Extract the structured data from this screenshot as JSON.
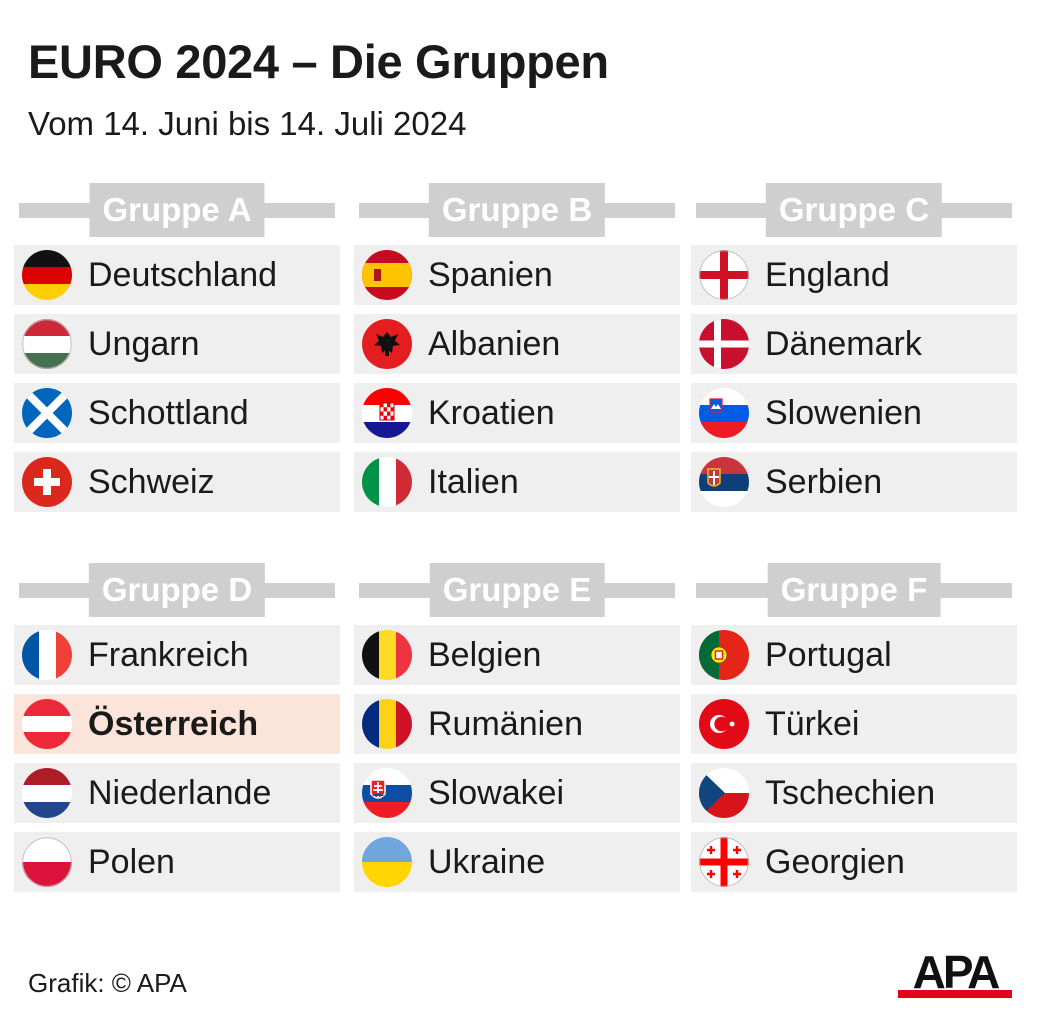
{
  "title": "EURO 2024 – Die Gruppen",
  "subtitle": "Vom 14. Juni bis 14. Juli 2024",
  "groups": [
    {
      "label": "Gruppe A",
      "teams": [
        {
          "name": "Deutschland",
          "flag": "germany-flag"
        },
        {
          "name": "Ungarn",
          "flag": "hungary-flag"
        },
        {
          "name": "Schottland",
          "flag": "scotland-flag"
        },
        {
          "name": "Schweiz",
          "flag": "switzerland-flag"
        }
      ]
    },
    {
      "label": "Gruppe B",
      "teams": [
        {
          "name": "Spanien",
          "flag": "spain-flag"
        },
        {
          "name": "Albanien",
          "flag": "albania-flag"
        },
        {
          "name": "Kroatien",
          "flag": "croatia-flag"
        },
        {
          "name": "Italien",
          "flag": "italy-flag"
        }
      ]
    },
    {
      "label": "Gruppe C",
      "teams": [
        {
          "name": "England",
          "flag": "england-flag"
        },
        {
          "name": "Dänemark",
          "flag": "denmark-flag"
        },
        {
          "name": "Slowenien",
          "flag": "slovenia-flag"
        },
        {
          "name": "Serbien",
          "flag": "serbia-flag"
        }
      ]
    },
    {
      "label": "Gruppe D",
      "teams": [
        {
          "name": "Frankreich",
          "flag": "france-flag"
        },
        {
          "name": "Österreich",
          "flag": "austria-flag",
          "highlight": true
        },
        {
          "name": "Niederlande",
          "flag": "netherlands-flag"
        },
        {
          "name": "Polen",
          "flag": "poland-flag"
        }
      ]
    },
    {
      "label": "Gruppe E",
      "teams": [
        {
          "name": "Belgien",
          "flag": "belgium-flag"
        },
        {
          "name": "Rumänien",
          "flag": "romania-flag"
        },
        {
          "name": "Slowakei",
          "flag": "slovakia-flag"
        },
        {
          "name": "Ukraine",
          "flag": "ukraine-flag"
        }
      ]
    },
    {
      "label": "Gruppe F",
      "teams": [
        {
          "name": "Portugal",
          "flag": "portugal-flag"
        },
        {
          "name": "Türkei",
          "flag": "turkey-flag"
        },
        {
          "name": "Tschechien",
          "flag": "czechia-flag"
        },
        {
          "name": "Georgien",
          "flag": "georgia-flag"
        }
      ]
    }
  ],
  "colors": {
    "group_header": "#cfcfcf",
    "row_background": "#efefef",
    "highlight_background": "#fbe4d9",
    "apa_red": "#e2001a"
  },
  "credit": "Grafik: © APA",
  "logo_text": "APA"
}
